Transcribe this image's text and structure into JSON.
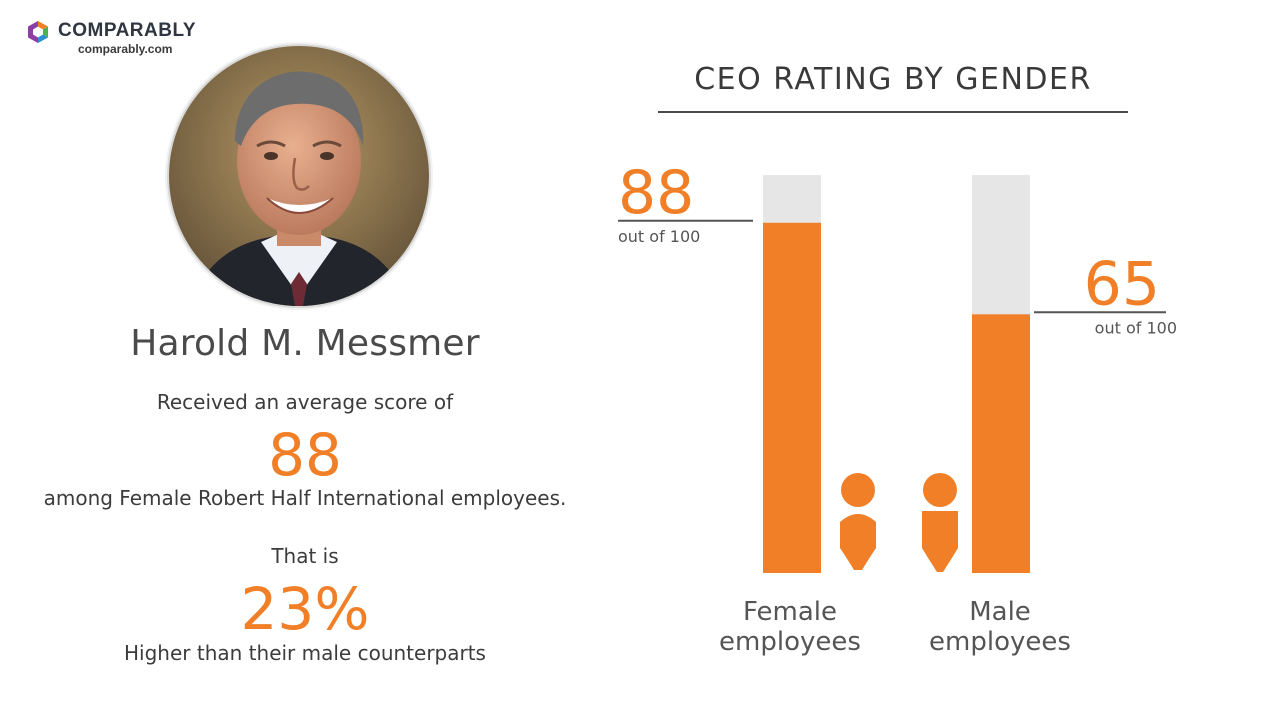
{
  "brand": {
    "name": "COMPARABLY",
    "url": "comparably.com",
    "colors": [
      "#f07f27",
      "#4caf50",
      "#2b8fd1",
      "#8b3fa6"
    ]
  },
  "profile": {
    "name": "Harold M. Messmer",
    "photo_icon": "ceo-portrait",
    "line1": "Received an average score of",
    "score": "88",
    "line2": "among Female Robert Half International employees.",
    "line3": "That is",
    "percent": "23%",
    "line4": "Higher than their male counterparts"
  },
  "colors": {
    "accent": "#f07f27",
    "track": "#e6e6e6",
    "text": "#404040"
  },
  "chart_data": {
    "type": "bar",
    "title": "CEO RATING BY GENDER",
    "categories": [
      "Female employees",
      "Male employees"
    ],
    "values": [
      88,
      65
    ],
    "ylim": [
      0,
      100
    ],
    "value_suffix": "out of 100",
    "icons": [
      "female-icon",
      "male-icon"
    ],
    "grid": false
  }
}
